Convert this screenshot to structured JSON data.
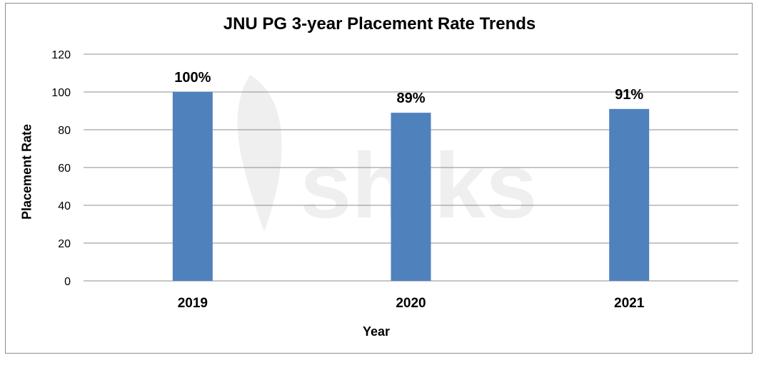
{
  "chart_data": {
    "type": "bar",
    "title": "JNU PG 3-year Placement Rate Trends",
    "xlabel": "Year",
    "ylabel": "Placement Rate",
    "categories": [
      "2019",
      "2020",
      "2021"
    ],
    "values": [
      100,
      89,
      91
    ],
    "data_labels": [
      "100%",
      "89%",
      "91%"
    ],
    "yticks": [
      "0",
      "20",
      "40",
      "60",
      "80",
      "100",
      "120"
    ],
    "ylim": [
      0,
      120
    ],
    "grid": true,
    "legend": "none",
    "bar_color": "#4f81bd",
    "watermark": "shiksha"
  }
}
